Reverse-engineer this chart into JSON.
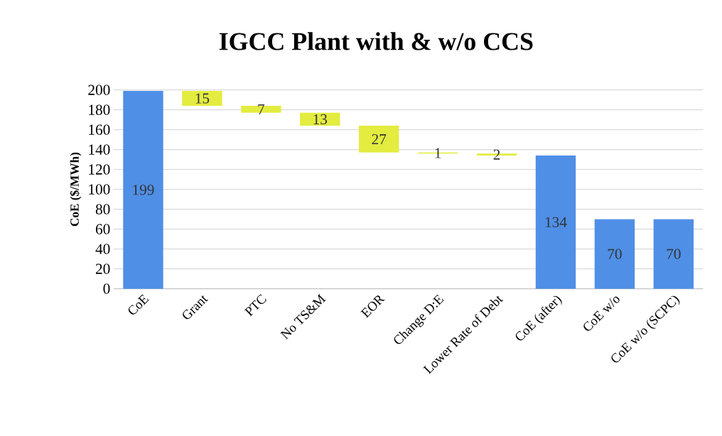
{
  "chart_data": {
    "type": "bar",
    "title": "IGCC Plant with & w/o CCS",
    "ylabel": "CoE ($/MWh)",
    "categories": [
      "CoE",
      "Grant",
      "PTC",
      "No TS&M",
      "EOR",
      "Change D:E",
      "Lower Rate of Debt",
      "CoE (after)",
      "CoE w/o",
      "CoE w/o (SCPC)"
    ],
    "values": [
      199,
      15,
      7,
      13,
      27,
      1,
      2,
      134,
      70,
      70
    ],
    "base": [
      0,
      184,
      177,
      164,
      137,
      136,
      134,
      0,
      0,
      0
    ],
    "colors": [
      "#4f8fe6",
      "#e3ec3f",
      "#e3ec3f",
      "#e3ec3f",
      "#e3ec3f",
      "#e3ec3f",
      "#e3ec3f",
      "#4f8fe6",
      "#4f8fe6",
      "#4f8fe6"
    ],
    "ylim": [
      0,
      200
    ],
    "yticks": [
      0,
      20,
      40,
      60,
      80,
      100,
      120,
      140,
      160,
      180,
      200
    ],
    "grid": "y",
    "data_labels": true
  }
}
